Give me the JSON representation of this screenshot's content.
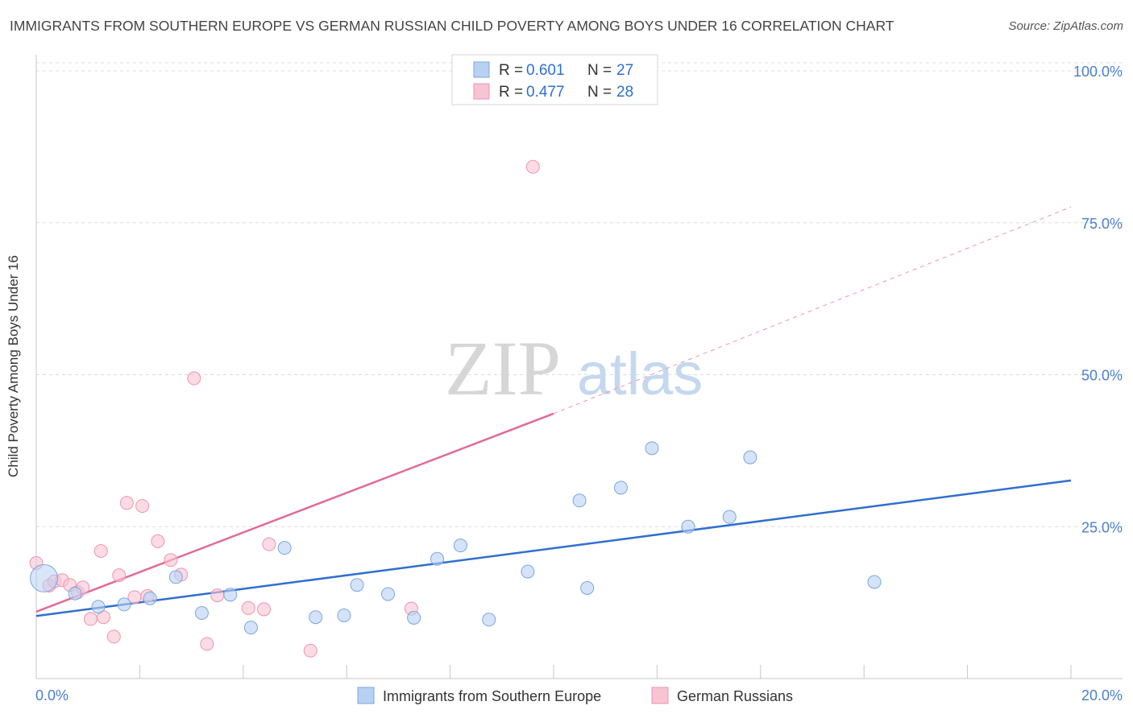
{
  "header": {
    "title": "IMMIGRANTS FROM SOUTHERN EUROPE VS GERMAN RUSSIAN CHILD POVERTY AMONG BOYS UNDER 16 CORRELATION CHART",
    "source": "Source: ZipAtlas.com"
  },
  "watermark": {
    "zip": "ZIP",
    "atlas": "atlas"
  },
  "legend_top": {
    "rows": [
      {
        "r_label": "R = ",
        "r_value": "0.601",
        "n_label": "N = ",
        "n_value": "27"
      },
      {
        "r_label": "R = ",
        "r_value": "0.477",
        "n_label": "N = ",
        "n_value": "28"
      }
    ]
  },
  "chart_data": {
    "type": "scatter",
    "title": "IMMIGRANTS FROM SOUTHERN EUROPE VS GERMAN RUSSIAN CHILD POVERTY AMONG BOYS UNDER 16 CORRELATION CHART",
    "xlabel": "",
    "ylabel": "Child Poverty Among Boys Under 16",
    "xlim": [
      0,
      20
    ],
    "ylim": [
      0,
      100
    ],
    "x_tick_labels": [
      "0.0%",
      "20.0%"
    ],
    "y_tick_labels": [
      "100.0%",
      "75.0%",
      "50.0%",
      "25.0%"
    ],
    "y_tick_values": [
      100,
      75,
      50,
      25
    ],
    "legend": [
      "Immigrants from Southern Europe",
      "German Russians"
    ],
    "colors": {
      "blue_fill": "#b8d1f2",
      "blue_stroke": "#7aa6e0",
      "blue_line": "#2f6fcf",
      "pink_fill": "#f8c3d2",
      "pink_stroke": "#ee94b0",
      "pink_line": "#e06c94",
      "axis_text": "#4a80cf"
    },
    "series": [
      {
        "name": "Immigrants from Southern Europe",
        "r": 0.601,
        "n": 27,
        "trend": {
          "x0": 0,
          "y0": 10.3,
          "x1": 20,
          "y1": 32.6
        },
        "points": [
          {
            "x": 0.15,
            "y": 16.5,
            "big": true
          },
          {
            "x": 0.75,
            "y": 14.0
          },
          {
            "x": 1.2,
            "y": 11.8
          },
          {
            "x": 1.7,
            "y": 12.2
          },
          {
            "x": 2.2,
            "y": 13.2
          },
          {
            "x": 2.7,
            "y": 16.7
          },
          {
            "x": 3.2,
            "y": 10.8
          },
          {
            "x": 3.75,
            "y": 13.8
          },
          {
            "x": 4.15,
            "y": 8.4
          },
          {
            "x": 4.8,
            "y": 21.5
          },
          {
            "x": 5.4,
            "y": 10.1
          },
          {
            "x": 5.95,
            "y": 10.4
          },
          {
            "x": 6.2,
            "y": 15.4
          },
          {
            "x": 6.8,
            "y": 13.9
          },
          {
            "x": 7.3,
            "y": 10.0
          },
          {
            "x": 7.75,
            "y": 19.7
          },
          {
            "x": 8.2,
            "y": 21.9
          },
          {
            "x": 8.75,
            "y": 9.7
          },
          {
            "x": 9.5,
            "y": 17.6
          },
          {
            "x": 10.5,
            "y": 29.3
          },
          {
            "x": 10.65,
            "y": 14.9
          },
          {
            "x": 11.3,
            "y": 31.4
          },
          {
            "x": 11.9,
            "y": 37.9
          },
          {
            "x": 12.6,
            "y": 25.0
          },
          {
            "x": 13.4,
            "y": 26.6
          },
          {
            "x": 13.8,
            "y": 36.4
          },
          {
            "x": 16.2,
            "y": 15.9
          }
        ]
      },
      {
        "name": "German Russians",
        "r": 0.477,
        "n": 28,
        "trend": {
          "x0": 0,
          "y0": 11.0,
          "x1": 10,
          "y1": 43.6,
          "dash_x1": 20,
          "dash_y1": 77.6
        },
        "points": [
          {
            "x": 0.0,
            "y": 19.0
          },
          {
            "x": 0.25,
            "y": 15.3
          },
          {
            "x": 0.35,
            "y": 16.0
          },
          {
            "x": 0.5,
            "y": 16.2
          },
          {
            "x": 0.65,
            "y": 15.4
          },
          {
            "x": 0.8,
            "y": 14.2
          },
          {
            "x": 0.9,
            "y": 15.0
          },
          {
            "x": 1.05,
            "y": 9.8
          },
          {
            "x": 1.25,
            "y": 21.0
          },
          {
            "x": 1.3,
            "y": 10.1
          },
          {
            "x": 1.5,
            "y": 6.9
          },
          {
            "x": 1.6,
            "y": 17.0
          },
          {
            "x": 1.75,
            "y": 28.9
          },
          {
            "x": 1.9,
            "y": 13.4
          },
          {
            "x": 2.05,
            "y": 28.4
          },
          {
            "x": 2.15,
            "y": 13.6
          },
          {
            "x": 2.35,
            "y": 22.6
          },
          {
            "x": 2.6,
            "y": 19.5
          },
          {
            "x": 2.8,
            "y": 17.1
          },
          {
            "x": 3.05,
            "y": 49.4
          },
          {
            "x": 3.3,
            "y": 5.7
          },
          {
            "x": 3.5,
            "y": 13.7
          },
          {
            "x": 4.1,
            "y": 11.6
          },
          {
            "x": 4.4,
            "y": 11.4
          },
          {
            "x": 4.5,
            "y": 22.1
          },
          {
            "x": 5.3,
            "y": 4.6
          },
          {
            "x": 7.25,
            "y": 11.5
          },
          {
            "x": 9.6,
            "y": 84.2
          }
        ]
      }
    ]
  },
  "legend_bottom": {
    "items": [
      "Immigrants from Southern Europe",
      "German Russians"
    ]
  }
}
